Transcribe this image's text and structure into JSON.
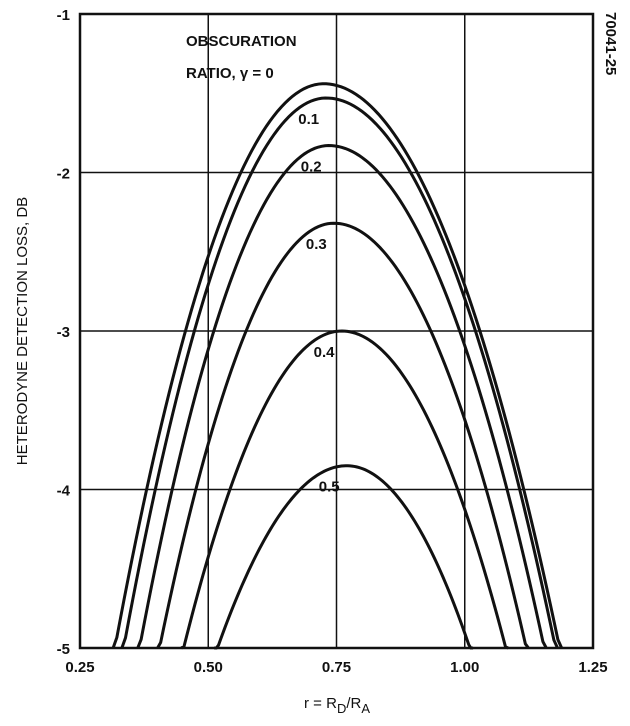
{
  "chart_data": {
    "type": "line",
    "ylabel": "HETERODYNE DETECTION LOSS, DB",
    "xlabel": {
      "main": "r = R",
      "sub1": "D",
      "mid": "/R",
      "sub2": "A"
    },
    "figure_id": "70041-25",
    "xlim": [
      0.25,
      1.25
    ],
    "ylim": [
      -5,
      -1
    ],
    "x_ticks": [
      "0.25",
      "0.50",
      "0.75",
      "1.00",
      "1.25"
    ],
    "y_ticks": [
      "-1",
      "-2",
      "-3",
      "-4",
      "-5"
    ],
    "grid": true,
    "legend_title": [
      "OBSCURATION",
      "RATIO, γ = 0"
    ],
    "series": [
      {
        "name": "0",
        "label": "",
        "peak_x": 0.725,
        "peak_y": -1.44,
        "x_at_min": [
          0.318,
          1.185
        ]
      },
      {
        "name": "0.1",
        "label": "0.1",
        "peak_x": 0.73,
        "peak_y": -1.53,
        "x_at_min": [
          0.335,
          1.177
        ]
      },
      {
        "name": "0.2",
        "label": "0.2",
        "peak_x": 0.735,
        "peak_y": -1.83,
        "x_at_min": [
          0.366,
          1.155
        ]
      },
      {
        "name": "0.3",
        "label": "0.3",
        "peak_x": 0.745,
        "peak_y": -2.32,
        "x_at_min": [
          0.405,
          1.12
        ]
      },
      {
        "name": "0.4",
        "label": "0.4",
        "peak_x": 0.76,
        "peak_y": -3.0,
        "x_at_min": [
          0.452,
          1.08
        ]
      },
      {
        "name": "0.5",
        "label": "0.5",
        "peak_x": 0.77,
        "peak_y": -3.85,
        "x_at_min": [
          0.518,
          1.01
        ]
      }
    ]
  }
}
